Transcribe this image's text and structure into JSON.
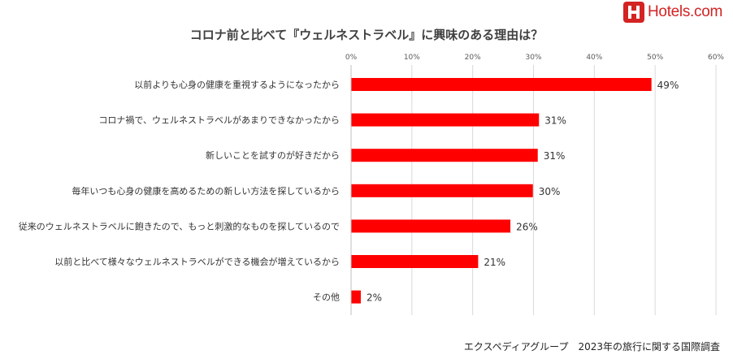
{
  "brand": {
    "logo_text": "Hotels.com",
    "logo_mark": "H",
    "color": "#d32323"
  },
  "source_note": "エクスペディアグループ　2023年の旅行に関する国際調査",
  "chart_data": {
    "type": "bar",
    "orientation": "horizontal",
    "title": "コロナ前と比べて『ウェルネストラベル』に興味のある理由は？",
    "categories": [
      "以前よりも心身の健康を重視するようになったから",
      "コロナ禍で、ウェルネストラベルがあまりできなかったから",
      "新しいことを試すのが好きだから",
      "毎年いつも心身の健康を高めるための新しい方法を探しているから",
      "従来のウェルネストラベルに飽きたので、もっと刺激的なものを探しているので",
      "以前と比べて様々なウェルネストラベルができる機会が増えているから",
      "その他"
    ],
    "values": [
      49.4,
      30.9,
      30.7,
      29.9,
      26.2,
      20.9,
      1.6
    ],
    "value_labels": [
      "49%",
      "31%",
      "31%",
      "30%",
      "26%",
      "21%",
      "2%"
    ],
    "xlim": [
      0,
      60
    ],
    "xticks": [
      0,
      10,
      20,
      30,
      40,
      50,
      60
    ],
    "xtick_labels": [
      "0%",
      "10%",
      "20%",
      "30%",
      "40%",
      "50%",
      "60%"
    ],
    "axis_position": "top",
    "grid": true,
    "bar_color": "#ff0000"
  }
}
